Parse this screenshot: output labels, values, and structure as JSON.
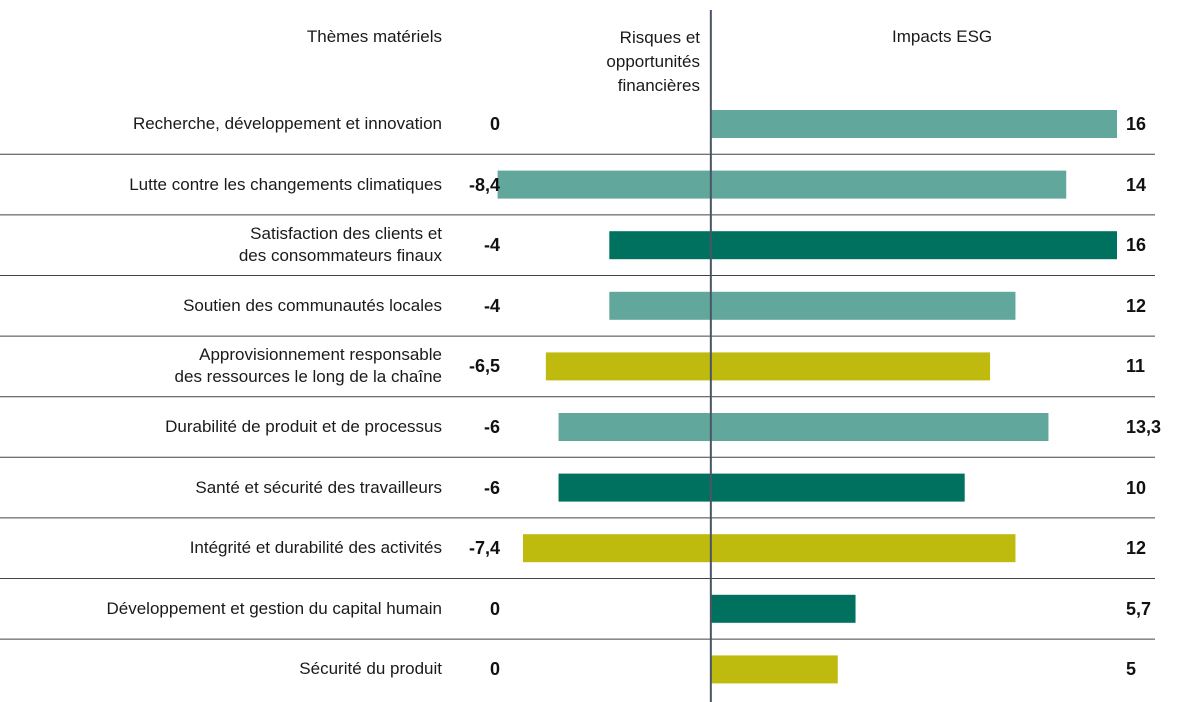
{
  "chart_data": {
    "type": "diverging-bar",
    "headers": [
      "Thèmes matériels",
      "Risques et\nopportunités\nfinancières",
      "Impacts ESG"
    ],
    "categories": [
      "Recherche, développement et innovation",
      "Lutte contre les changements climatiques",
      "Satisfaction des clients et\ndes consommateurs finaux",
      "Soutien des communautés locales",
      "Approvisionnement responsable\ndes ressources le long de la chaîne",
      "Durabilité de produit et de processus",
      "Santé et sécurité des travailleurs",
      "Intégrité et durabilité des activités",
      "Développement et gestion du capital humain",
      "Sécurité du produit"
    ],
    "colors": [
      "#62a79c",
      "#62a79c",
      "#00705f",
      "#62a79c",
      "#bfba0e",
      "#62a79c",
      "#00705f",
      "#bfba0e",
      "#00705f",
      "#bfba0e"
    ],
    "series": [
      {
        "name": "Risques et opportunités financières",
        "values": [
          0,
          -8.4,
          -4,
          -4,
          -6.5,
          -6,
          -6,
          -7.4,
          0,
          0
        ],
        "value_labels": [
          "0",
          "-8,4",
          "-4",
          "-4",
          "-6,5",
          "-6",
          "-6",
          "-7,4",
          "0",
          "0"
        ]
      },
      {
        "name": "Impacts ESG",
        "values": [
          16,
          14,
          16,
          12,
          11,
          13.3,
          10,
          12,
          5.7,
          5
        ],
        "value_labels": [
          "16",
          "14",
          "16",
          "12",
          "11",
          "13,3",
          "10",
          "12",
          "5,7",
          "5"
        ]
      }
    ],
    "xlim": [
      -10,
      16
    ]
  }
}
